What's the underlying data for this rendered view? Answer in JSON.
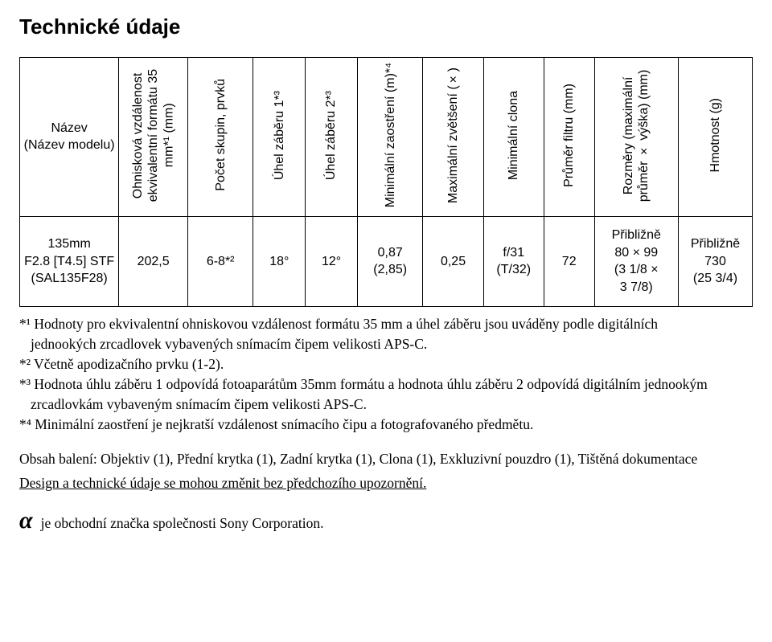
{
  "title": "Technické údaje",
  "table": {
    "headers": {
      "name": "Název\n(Název modelu)",
      "focal": "Ohnisková vzdálenost ekvivalentní formátu 35 mm*¹ (mm)",
      "groups": "Počet skupin, prvků",
      "angle1": "Úhel záběru 1*³",
      "angle2": "Úhel záběru 2*³",
      "minfocus": "Minimální zaostření (m)*⁴",
      "maxmag": "Maximální zvětšení (×)",
      "minap": "Minimální clona",
      "filter": "Průměr filtru (mm)",
      "dims": "Rozměry (maximální průměr × výška) (mm)",
      "weight": "Hmotnost (g)"
    },
    "row": {
      "name": "135mm\nF2.8 [T4.5] STF\n(SAL135F28)",
      "focal": "202,5",
      "groups": "6-8*²",
      "angle1": "18°",
      "angle2": "12°",
      "minfocus": "0,87\n(2,85)",
      "maxmag": "0,25",
      "minap": "f/31\n(T/32)",
      "filter": "72",
      "dims": "Přibližně\n80 × 99\n(3 1/8 ×\n3 7/8)",
      "weight": "Přibližně\n730\n(25 3/4)"
    }
  },
  "notes": {
    "n1a": "*¹ Hodnoty pro ekvivalentní ohniskovou vzdálenost formátu 35 mm a úhel záběru jsou uváděny podle digitálních",
    "n1b": "jednookých zrcadlovek vybavených snímacím čipem velikosti APS-C.",
    "n2": "*² Včetně apodizačního prvku (1-2).",
    "n3a": "*³ Hodnota úhlu záběru 1 odpovídá fotoaparátům 35mm formátu a hodnota úhlu záběru 2 odpovídá digitálním jednookým",
    "n3b": "zrcadlovkám vybaveným snímacím čipem velikosti APS-C.",
    "n4": "*⁴ Minimální zaostření je nejkratší vzdálenost snímacího čipu a fotografovaného předmětu."
  },
  "body": {
    "contents": "Obsah balení: Objektiv (1), Přední krytka (1), Zadní krytka (1), Clona (1), Exkluzivní pouzdro (1), Tištěná dokumentace",
    "design": "Design a technické údaje se mohou změnit bez předchozího upozornění.",
    "alpha_symbol": "α",
    "alpha_text": " je obchodní značka společnosti Sony Corporation."
  }
}
